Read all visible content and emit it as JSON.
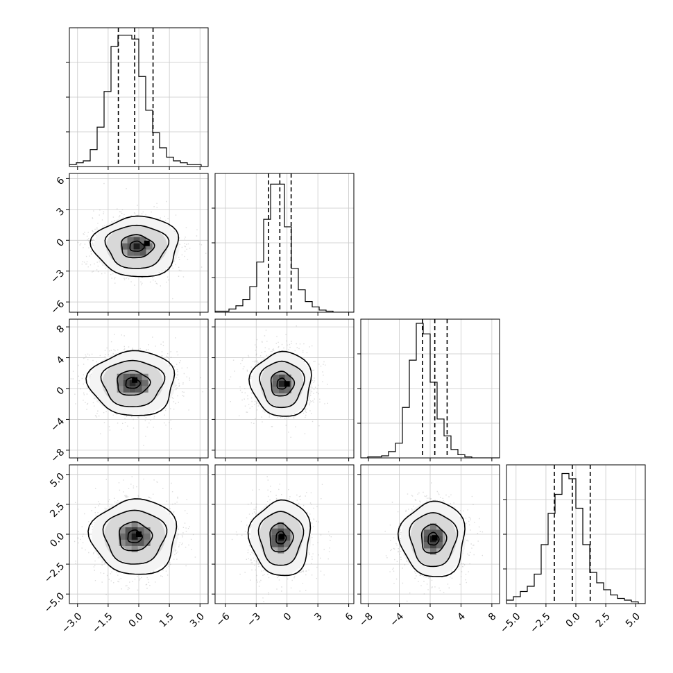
{
  "chart_data": {
    "type": "corner",
    "dimensions": 4,
    "grid": true,
    "dims": [
      {
        "range": [
          -3.4,
          3.4
        ],
        "ticks": [
          -3.0,
          -1.5,
          0.0,
          1.5,
          3.0
        ],
        "tick_labels": [
          "−3.0",
          "−1.5",
          "0.0",
          "1.5",
          "3.0"
        ],
        "quantiles": [
          -1.0,
          -0.2,
          0.7
        ],
        "hist_counts": [
          1,
          2,
          3,
          9,
          21,
          40,
          64,
          70,
          70,
          68,
          48,
          30,
          18,
          10,
          5,
          3,
          2,
          1,
          1,
          0
        ],
        "hist_ylim": [
          0,
          74
        ]
      },
      {
        "range": [
          -7.0,
          6.5
        ],
        "ticks": [
          -6,
          -3,
          0,
          3,
          6
        ],
        "tick_labels": [
          "−6",
          "−3",
          "0",
          "3",
          "6"
        ],
        "quantiles": [
          -1.8,
          -0.7,
          0.4
        ],
        "hist_counts": [
          1,
          1,
          3,
          6,
          12,
          24,
          47,
          87,
          120,
          120,
          80,
          41,
          21,
          10,
          5,
          2,
          1,
          0,
          0,
          0
        ],
        "hist_ylim": [
          0,
          130
        ]
      },
      {
        "range": [
          -9.0,
          9.0
        ],
        "ticks": [
          -8,
          -4,
          0,
          4,
          8
        ],
        "tick_labels": [
          "−8",
          "−4",
          "0",
          "4",
          "8"
        ],
        "quantiles": [
          -1.0,
          0.6,
          2.2
        ],
        "hist_counts": [
          0,
          1,
          1,
          2,
          6,
          14,
          48,
          93,
          128,
          118,
          72,
          37,
          21,
          8,
          3,
          1,
          0,
          0,
          0,
          0
        ],
        "hist_ylim": [
          0,
          132
        ]
      },
      {
        "range": [
          -5.8,
          5.8
        ],
        "ticks": [
          -5.0,
          -2.5,
          0.0,
          2.5,
          5.0
        ],
        "tick_labels": [
          "−5.0",
          "−2.5",
          "0.0",
          "2.5",
          "5.0"
        ],
        "quantiles": [
          -1.8,
          -0.3,
          1.2
        ],
        "hist_counts": [
          2,
          4,
          7,
          10,
          17,
          34,
          52,
          63,
          75,
          72,
          55,
          34,
          18,
          12,
          8,
          5,
          3,
          2,
          1,
          0
        ],
        "hist_ylim": [
          0,
          80
        ]
      }
    ],
    "pairs": [
      {
        "x": 0,
        "y": 1,
        "center": [
          -0.1,
          -0.6
        ],
        "sx": 1.0,
        "sy": 1.4,
        "contours": [
          0.35,
          0.8,
          1.5,
          2.1
        ],
        "peak": [
          0.4,
          -0.3
        ]
      },
      {
        "x": 0,
        "y": 2,
        "center": [
          -0.3,
          0.7
        ],
        "sx": 1.0,
        "sy": 2.0,
        "contours": [
          0.35,
          0.8,
          1.5,
          2.1
        ],
        "peak": [
          -0.2,
          1.1
        ]
      },
      {
        "x": 1,
        "y": 2,
        "center": [
          -0.5,
          0.6
        ],
        "sx": 1.4,
        "sy": 2.0,
        "contours": [
          0.35,
          0.8,
          1.5,
          2.1
        ],
        "peak": [
          0.0,
          0.6
        ]
      },
      {
        "x": 0,
        "y": 3,
        "center": [
          -0.2,
          -0.2
        ],
        "sx": 1.0,
        "sy": 1.5,
        "contours": [
          0.35,
          0.8,
          1.5,
          2.1
        ],
        "peak": [
          0.0,
          0.0
        ]
      },
      {
        "x": 1,
        "y": 3,
        "center": [
          -0.6,
          -0.3
        ],
        "sx": 1.4,
        "sy": 1.5,
        "contours": [
          0.35,
          0.8,
          1.5,
          2.1
        ],
        "peak": [
          -0.5,
          -0.2
        ]
      },
      {
        "x": 2,
        "y": 3,
        "center": [
          0.4,
          -0.4
        ],
        "sx": 2.0,
        "sy": 1.5,
        "contours": [
          0.35,
          0.8,
          1.5,
          2.1
        ],
        "peak": [
          0.6,
          -0.3
        ]
      }
    ]
  }
}
